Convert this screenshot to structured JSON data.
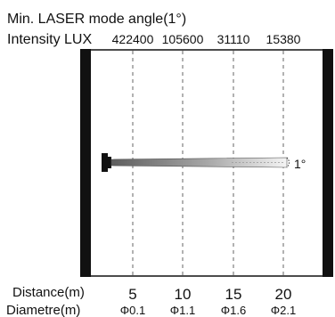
{
  "title": "Min. LASER mode angle(1°)",
  "intensity_label": "Intensity LUX",
  "intensity_values": [
    "422400",
    "105600",
    "31110",
    "15380"
  ],
  "beam_angle": "1°",
  "distance_label": "Distance(m)",
  "distances": [
    "5",
    "10",
    "15",
    "20"
  ],
  "diameter_label": "Diametre(m)",
  "diameters": [
    "Φ0.1",
    "Φ1.1",
    "Φ1.6",
    "Φ2.1"
  ],
  "colors": {
    "frame": "#111111",
    "text": "#111111",
    "gridline": "#666666",
    "beam_light": "#f2f2f2",
    "beam_dark": "#6a6a6a"
  }
}
